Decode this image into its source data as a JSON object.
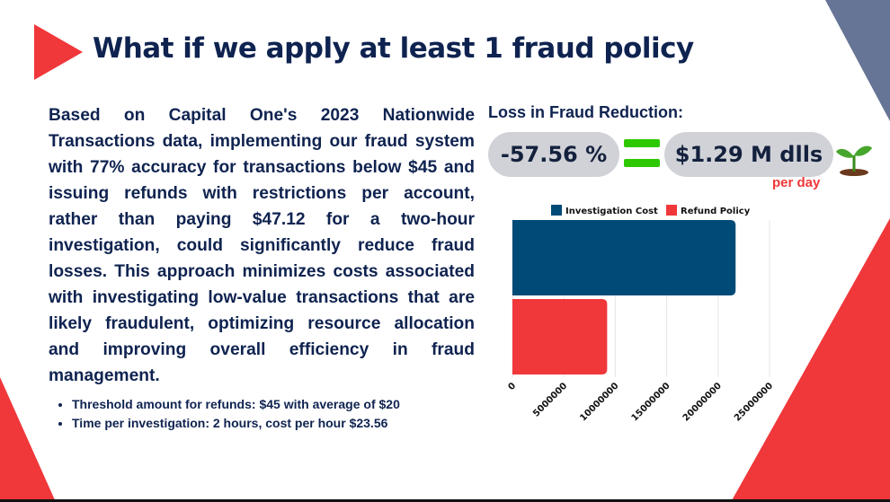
{
  "slide": {
    "title": "What if we apply at least 1 fraud policy",
    "body": "Based on Capital One's 2023 Nationwide Transactions data, implementing our fraud system with 77% accuracy for transactions below $45 and issuing refunds with restrictions per account, rather than paying $47.12 for a two-hour investigation, could significantly reduce fraud losses. This approach minimizes costs associated with investigating low-value transactions that are likely fraudulent, optimizing resource allocation and improving overall efficiency in fraud management.",
    "bullets": [
      "Threshold amount for refunds: $45 with average of $20",
      "Time per investigation: 2 hours, cost per hour $23.56"
    ],
    "loss_label": "Loss in Fraud Reduction:",
    "percent": "-57.56 %",
    "amount": "$1.29 M dlls",
    "per_day": "per day",
    "icons": [
      "play-triangle-icon",
      "equals-icon",
      "sprout-icon"
    ],
    "colors": {
      "navy": "#0f2350",
      "red": "#f0373a",
      "slate": "#667595",
      "green": "#2ec800"
    }
  },
  "chart_data": {
    "type": "bar",
    "orientation": "horizontal",
    "series": [
      {
        "name": "Investigation Cost",
        "values": [
          21700000
        ],
        "color": "#004a77"
      },
      {
        "name": "Refund Policy",
        "values": [
          9210000
        ],
        "color": "#f0373a"
      }
    ],
    "xticks": [
      "0",
      "5000000",
      "10000000",
      "15000000",
      "20000000",
      "25000000"
    ],
    "xlim": [
      0,
      25000000
    ],
    "grid": true,
    "legend": "top"
  }
}
